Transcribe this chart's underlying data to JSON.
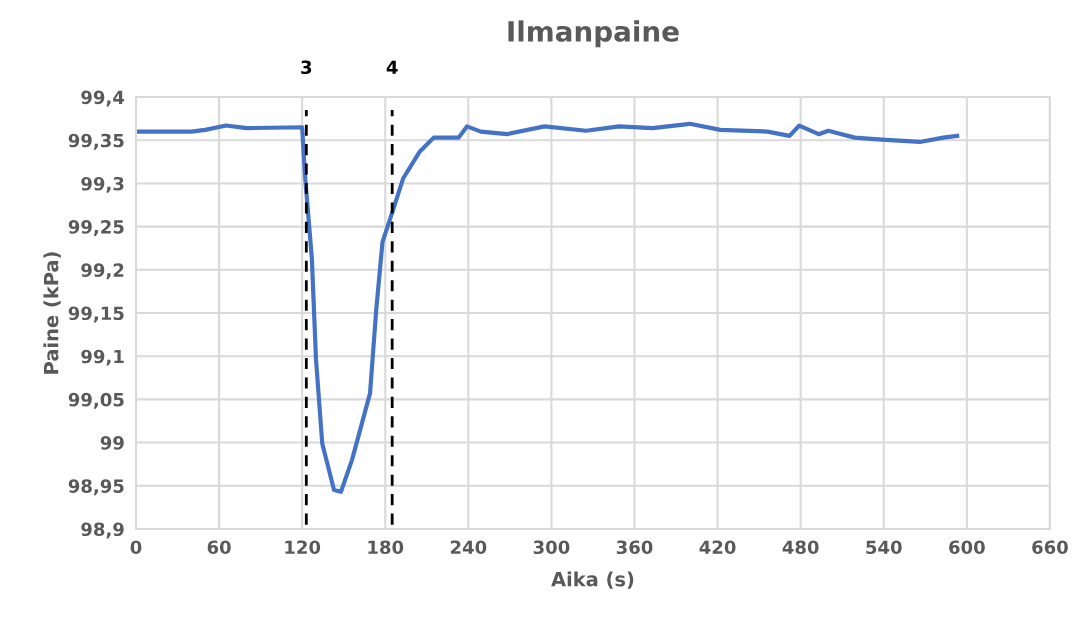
{
  "chart_data": {
    "type": "line",
    "title": "Ilmanpaine",
    "xlabel": "Aika (s)",
    "ylabel": "Paine (kPa)",
    "xlim": [
      0,
      660
    ],
    "xticks": [
      0,
      60,
      120,
      180,
      240,
      300,
      360,
      420,
      480,
      540,
      600,
      660
    ],
    "ylim": [
      98.9,
      99.4
    ],
    "yticks": [
      {
        "value": 98.9,
        "label": "98,9"
      },
      {
        "value": 98.95,
        "label": "98,95"
      },
      {
        "value": 99,
        "label": "99"
      },
      {
        "value": 99.05,
        "label": "99,05"
      },
      {
        "value": 99.1,
        "label": "99,1"
      },
      {
        "value": 99.15,
        "label": "99,15"
      },
      {
        "value": 99.2,
        "label": "99,2"
      },
      {
        "value": 99.25,
        "label": "99,25"
      },
      {
        "value": 99.3,
        "label": "99,3"
      },
      {
        "value": 99.35,
        "label": "99,35"
      },
      {
        "value": 99.4,
        "label": "99,4"
      }
    ],
    "grid": true,
    "marker": "none",
    "line_style": "solid",
    "series": [
      {
        "color": "#4472c4",
        "x": [
          0,
          40,
          50,
          65,
          80,
          120,
          122,
          127,
          130,
          134.5,
          143,
          148,
          156,
          169,
          173.5,
          178,
          186,
          193,
          205,
          215,
          233,
          239,
          249,
          268,
          295,
          325,
          349,
          373,
          400,
          422,
          456,
          472,
          479,
          493,
          500,
          519,
          536,
          566,
          583,
          593
        ],
        "values": [
          99.36,
          99.36,
          99.362,
          99.367,
          99.364,
          99.365,
          99.31,
          99.213,
          99.096,
          98.999,
          98.945,
          98.943,
          98.98,
          99.057,
          99.154,
          99.232,
          99.271,
          99.306,
          99.337,
          99.353,
          99.353,
          99.366,
          99.36,
          99.357,
          99.366,
          99.361,
          99.366,
          99.364,
          99.369,
          99.362,
          99.36,
          99.355,
          99.367,
          99.357,
          99.361,
          99.353,
          99.351,
          99.348,
          99.353,
          99.355
        ]
      }
    ],
    "ref_lines": [
      {
        "axis": "x",
        "value": 123,
        "color": "#000000",
        "line_style": "dashed"
      },
      {
        "axis": "x",
        "value": 185,
        "color": "#000000",
        "line_style": "dashed"
      }
    ],
    "annotations": [
      "3",
      "4"
    ]
  }
}
